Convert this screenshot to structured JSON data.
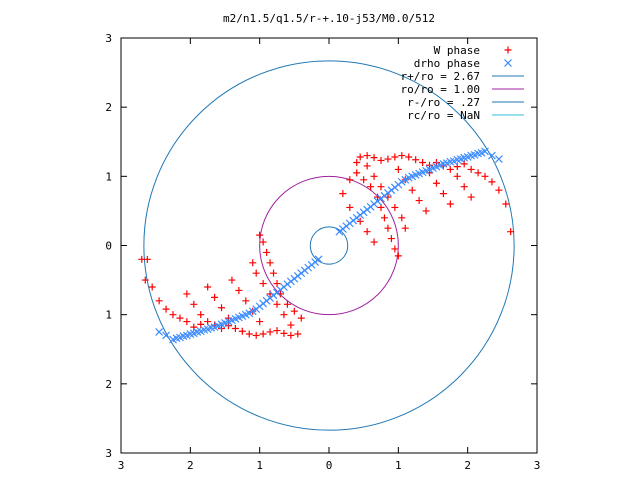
{
  "chart_data": {
    "type": "scatter",
    "title": "m2/n1.5/q1.5/r-+.10-j53/M0.0/512",
    "xlabel": "",
    "ylabel": "",
    "xlim": [
      -3,
      3
    ],
    "ylim": [
      -3,
      3
    ],
    "x_tick_labels": [
      "3",
      "2",
      "1",
      "0",
      "1",
      "2",
      "3"
    ],
    "y_tick_labels": [
      "3",
      "2",
      "1",
      "0",
      "1",
      "2",
      "3"
    ],
    "x_tick_values": [
      -3,
      -2,
      -1,
      0,
      1,
      2,
      3
    ],
    "y_tick_values": [
      3,
      2,
      1,
      0,
      -1,
      -2,
      -3
    ],
    "grid": false,
    "legend_position": "top-right",
    "series": [
      {
        "name": "W phase",
        "kind": "points",
        "marker": "plus",
        "color": "#ff0000",
        "points": [
          [
            0.45,
            1.28
          ],
          [
            0.55,
            1.3
          ],
          [
            0.65,
            1.27
          ],
          [
            0.75,
            1.23
          ],
          [
            0.85,
            1.25
          ],
          [
            0.95,
            1.28
          ],
          [
            1.05,
            1.3
          ],
          [
            1.15,
            1.28
          ],
          [
            1.25,
            1.24
          ],
          [
            1.35,
            1.2
          ],
          [
            1.45,
            1.16
          ],
          [
            1.55,
            1.2
          ],
          [
            1.65,
            1.15
          ],
          [
            1.75,
            1.1
          ],
          [
            1.85,
            1.14
          ],
          [
            1.95,
            1.18
          ],
          [
            2.05,
            1.1
          ],
          [
            2.15,
            1.05
          ],
          [
            2.25,
            1.0
          ],
          [
            2.35,
            0.92
          ],
          [
            2.45,
            0.8
          ],
          [
            2.55,
            0.6
          ],
          [
            2.62,
            0.2
          ],
          [
            0.4,
            1.05
          ],
          [
            0.5,
            0.95
          ],
          [
            0.6,
            0.85
          ],
          [
            0.7,
            0.7
          ],
          [
            0.75,
            0.55
          ],
          [
            0.8,
            0.4
          ],
          [
            0.85,
            0.25
          ],
          [
            0.9,
            0.1
          ],
          [
            0.95,
            -0.05
          ],
          [
            1.0,
            -0.15
          ],
          [
            0.55,
            1.15
          ],
          [
            0.65,
            1.0
          ],
          [
            0.75,
            0.85
          ],
          [
            0.85,
            0.7
          ],
          [
            0.95,
            0.55
          ],
          [
            1.05,
            0.4
          ],
          [
            1.1,
            0.25
          ],
          [
            1.0,
            1.1
          ],
          [
            1.1,
            0.95
          ],
          [
            1.2,
            0.8
          ],
          [
            1.3,
            0.65
          ],
          [
            1.4,
            0.5
          ],
          [
            1.45,
            1.05
          ],
          [
            1.55,
            0.9
          ],
          [
            1.65,
            0.75
          ],
          [
            1.75,
            0.6
          ],
          [
            1.85,
            1.0
          ],
          [
            1.95,
            0.85
          ],
          [
            2.05,
            0.7
          ],
          [
            0.4,
            1.2
          ],
          [
            0.3,
            0.95
          ],
          [
            0.2,
            0.75
          ],
          [
            0.3,
            0.55
          ],
          [
            0.45,
            0.35
          ],
          [
            0.55,
            0.2
          ],
          [
            0.65,
            0.05
          ],
          [
            -0.45,
            -1.28
          ],
          [
            -0.55,
            -1.3
          ],
          [
            -0.65,
            -1.27
          ],
          [
            -0.75,
            -1.23
          ],
          [
            -0.85,
            -1.25
          ],
          [
            -0.95,
            -1.28
          ],
          [
            -1.05,
            -1.3
          ],
          [
            -1.15,
            -1.28
          ],
          [
            -1.25,
            -1.24
          ],
          [
            -1.35,
            -1.2
          ],
          [
            -1.45,
            -1.16
          ],
          [
            -1.55,
            -1.2
          ],
          [
            -1.65,
            -1.15
          ],
          [
            -1.75,
            -1.1
          ],
          [
            -1.85,
            -1.14
          ],
          [
            -1.95,
            -1.18
          ],
          [
            -2.05,
            -1.1
          ],
          [
            -2.15,
            -1.05
          ],
          [
            -2.25,
            -1.0
          ],
          [
            -2.35,
            -0.92
          ],
          [
            -2.45,
            -0.8
          ],
          [
            -2.55,
            -0.6
          ],
          [
            -2.62,
            -0.2
          ],
          [
            -0.4,
            -1.05
          ],
          [
            -0.5,
            -0.95
          ],
          [
            -0.6,
            -0.85
          ],
          [
            -0.7,
            -0.7
          ],
          [
            -0.75,
            -0.55
          ],
          [
            -0.8,
            -0.4
          ],
          [
            -0.85,
            -0.25
          ],
          [
            -0.9,
            -0.1
          ],
          [
            -0.95,
            0.05
          ],
          [
            -1.0,
            0.15
          ],
          [
            -0.55,
            -1.15
          ],
          [
            -0.65,
            -1.0
          ],
          [
            -0.75,
            -0.85
          ],
          [
            -0.85,
            -0.7
          ],
          [
            -0.95,
            -0.55
          ],
          [
            -1.05,
            -0.4
          ],
          [
            -1.1,
            -0.25
          ],
          [
            -1.0,
            -1.1
          ],
          [
            -1.1,
            -0.95
          ],
          [
            -1.2,
            -0.8
          ],
          [
            -1.3,
            -0.65
          ],
          [
            -1.4,
            -0.5
          ],
          [
            -1.45,
            -1.05
          ],
          [
            -1.55,
            -0.9
          ],
          [
            -1.65,
            -0.75
          ],
          [
            -1.75,
            -0.6
          ],
          [
            -1.85,
            -1.0
          ],
          [
            -1.95,
            -0.85
          ],
          [
            -2.05,
            -0.7
          ],
          [
            -2.7,
            -0.2
          ],
          [
            -2.65,
            -0.5
          ]
        ]
      },
      {
        "name": "drho phase",
        "kind": "points",
        "marker": "cross",
        "color": "#3c8cff",
        "points": [
          [
            0.15,
            0.2
          ],
          [
            0.25,
            0.28
          ],
          [
            0.35,
            0.36
          ],
          [
            0.45,
            0.44
          ],
          [
            0.55,
            0.52
          ],
          [
            0.65,
            0.6
          ],
          [
            0.75,
            0.68
          ],
          [
            0.85,
            0.76
          ],
          [
            0.95,
            0.84
          ],
          [
            1.05,
            0.92
          ],
          [
            1.15,
            0.98
          ],
          [
            1.25,
            1.02
          ],
          [
            1.35,
            1.06
          ],
          [
            1.45,
            1.1
          ],
          [
            1.55,
            1.14
          ],
          [
            1.65,
            1.18
          ],
          [
            1.75,
            1.21
          ],
          [
            1.85,
            1.24
          ],
          [
            1.95,
            1.27
          ],
          [
            2.05,
            1.3
          ],
          [
            2.15,
            1.33
          ],
          [
            2.25,
            1.36
          ],
          [
            2.35,
            1.3
          ],
          [
            2.45,
            1.25
          ],
          [
            0.2,
            0.24
          ],
          [
            0.3,
            0.32
          ],
          [
            0.4,
            0.4
          ],
          [
            0.5,
            0.48
          ],
          [
            0.6,
            0.56
          ],
          [
            0.7,
            0.64
          ],
          [
            0.8,
            0.72
          ],
          [
            0.9,
            0.8
          ],
          [
            1.0,
            0.88
          ],
          [
            1.1,
            0.95
          ],
          [
            1.2,
            1.0
          ],
          [
            1.3,
            1.04
          ],
          [
            1.4,
            1.08
          ],
          [
            1.5,
            1.12
          ],
          [
            1.6,
            1.16
          ],
          [
            1.7,
            1.19
          ],
          [
            1.8,
            1.22
          ],
          [
            1.9,
            1.25
          ],
          [
            2.0,
            1.28
          ],
          [
            2.1,
            1.31
          ],
          [
            2.2,
            1.34
          ],
          [
            -0.15,
            -0.2
          ],
          [
            -0.25,
            -0.28
          ],
          [
            -0.35,
            -0.36
          ],
          [
            -0.45,
            -0.44
          ],
          [
            -0.55,
            -0.52
          ],
          [
            -0.65,
            -0.6
          ],
          [
            -0.75,
            -0.68
          ],
          [
            -0.85,
            -0.76
          ],
          [
            -0.95,
            -0.84
          ],
          [
            -1.05,
            -0.92
          ],
          [
            -1.15,
            -0.98
          ],
          [
            -1.25,
            -1.02
          ],
          [
            -1.35,
            -1.06
          ],
          [
            -1.45,
            -1.1
          ],
          [
            -1.55,
            -1.14
          ],
          [
            -1.65,
            -1.18
          ],
          [
            -1.75,
            -1.21
          ],
          [
            -1.85,
            -1.24
          ],
          [
            -1.95,
            -1.27
          ],
          [
            -2.05,
            -1.3
          ],
          [
            -2.15,
            -1.33
          ],
          [
            -2.25,
            -1.36
          ],
          [
            -2.35,
            -1.3
          ],
          [
            -2.45,
            -1.25
          ],
          [
            -0.2,
            -0.24
          ],
          [
            -0.3,
            -0.32
          ],
          [
            -0.4,
            -0.4
          ],
          [
            -0.5,
            -0.48
          ],
          [
            -0.6,
            -0.56
          ],
          [
            -0.7,
            -0.64
          ],
          [
            -0.8,
            -0.72
          ],
          [
            -0.9,
            -0.8
          ],
          [
            -1.0,
            -0.88
          ],
          [
            -1.1,
            -0.95
          ],
          [
            -1.2,
            -1.0
          ],
          [
            -1.3,
            -1.04
          ],
          [
            -1.4,
            -1.08
          ],
          [
            -1.5,
            -1.12
          ],
          [
            -1.6,
            -1.16
          ],
          [
            -1.7,
            -1.19
          ],
          [
            -1.8,
            -1.22
          ],
          [
            -1.9,
            -1.25
          ],
          [
            -2.0,
            -1.28
          ],
          [
            -2.1,
            -1.31
          ],
          [
            -2.2,
            -1.34
          ]
        ]
      },
      {
        "name": "r+/ro = 2.67",
        "kind": "circle",
        "radius": 2.67,
        "color": "#1f77b4"
      },
      {
        "name": "ro/ro = 1.00",
        "kind": "circle",
        "radius": 1.0,
        "color": "#a020a0"
      },
      {
        "name": "r-/ro = .27",
        "kind": "circle",
        "radius": 0.27,
        "color": "#1f77b4"
      },
      {
        "name": "rc/ro = NaN",
        "kind": "circle",
        "radius": null,
        "color": "#30c0e0"
      }
    ]
  }
}
